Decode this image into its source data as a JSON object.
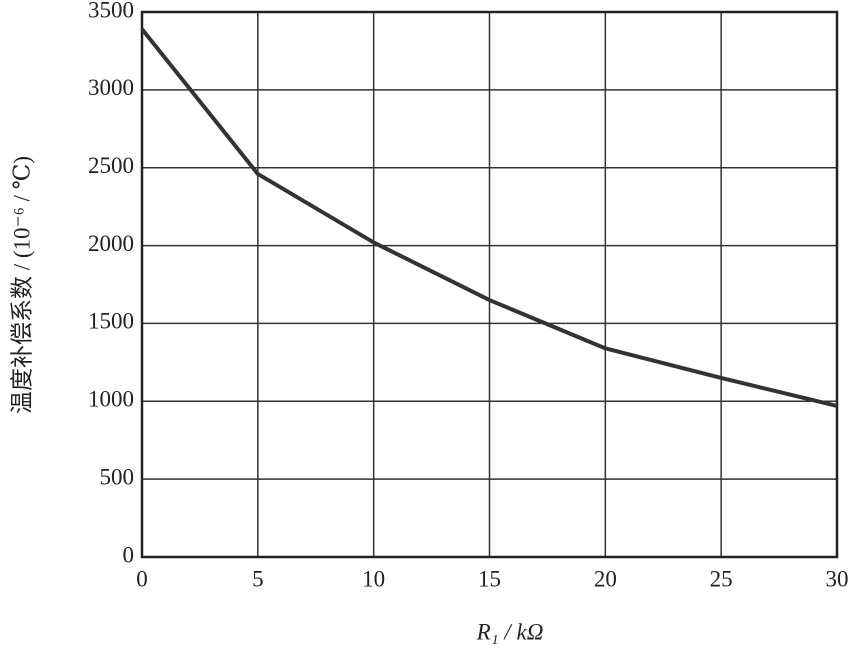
{
  "chart_data": {
    "type": "line",
    "x_label": "R₁ / kΩ",
    "y_label": "温度补偿系数 / (10⁻⁶ / ℃)",
    "x": [
      0,
      5,
      10,
      15,
      20,
      25,
      30
    ],
    "series": [
      {
        "color": "#333333",
        "values": [
          3390,
          2460,
          2020,
          1650,
          1340,
          1150,
          970
        ]
      }
    ],
    "xlim": [
      0,
      30
    ],
    "xticks": [
      0,
      5,
      10,
      15,
      20,
      25,
      30
    ],
    "ylim": [
      0,
      3500
    ],
    "yticks": [
      0,
      500,
      1000,
      1500,
      2000,
      2500,
      3000,
      3500
    ],
    "grid": true
  }
}
